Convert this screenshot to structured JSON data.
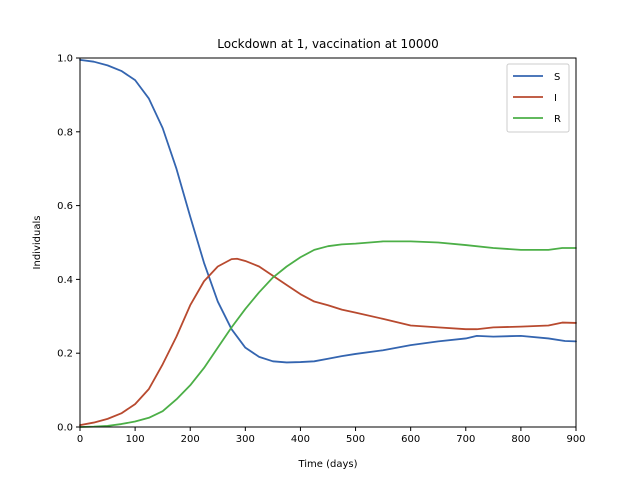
{
  "chart_data": {
    "type": "line",
    "title": "Lockdown at 1, vaccination at 10000",
    "xlabel": "Time (days)",
    "ylabel": "Individuals",
    "xlim": [
      0,
      900
    ],
    "ylim": [
      0,
      1.0
    ],
    "xticks": [
      0,
      100,
      200,
      300,
      400,
      500,
      600,
      700,
      800,
      900
    ],
    "yticks": [
      0.0,
      0.2,
      0.4,
      0.6,
      0.8,
      1.0
    ],
    "xtick_labels": [
      "0",
      "100",
      "200",
      "300",
      "400",
      "500",
      "600",
      "700",
      "800",
      "900"
    ],
    "ytick_labels": [
      "0.0",
      "0.2",
      "0.4",
      "0.6",
      "0.8",
      "1.0"
    ],
    "grid": false,
    "legend_position": "top-right",
    "series": [
      {
        "name": "S",
        "color": "#3465b0",
        "x": [
          0,
          25,
          50,
          75,
          100,
          125,
          150,
          175,
          200,
          225,
          250,
          275,
          300,
          325,
          350,
          375,
          400,
          425,
          450,
          475,
          500,
          550,
          600,
          650,
          700,
          720,
          750,
          800,
          850,
          880,
          900
        ],
        "y": [
          0.995,
          0.99,
          0.98,
          0.965,
          0.94,
          0.89,
          0.81,
          0.7,
          0.57,
          0.445,
          0.34,
          0.265,
          0.215,
          0.19,
          0.178,
          0.175,
          0.176,
          0.178,
          0.185,
          0.192,
          0.198,
          0.208,
          0.222,
          0.232,
          0.24,
          0.247,
          0.245,
          0.247,
          0.24,
          0.233,
          0.232
        ]
      },
      {
        "name": "I",
        "color": "#b84a2f",
        "x": [
          0,
          25,
          50,
          75,
          100,
          125,
          150,
          175,
          200,
          225,
          250,
          275,
          285,
          300,
          325,
          350,
          375,
          400,
          425,
          450,
          475,
          500,
          550,
          600,
          650,
          700,
          720,
          750,
          800,
          850,
          875,
          900
        ],
        "y": [
          0.005,
          0.012,
          0.022,
          0.037,
          0.062,
          0.103,
          0.17,
          0.245,
          0.33,
          0.395,
          0.435,
          0.455,
          0.456,
          0.45,
          0.435,
          0.41,
          0.385,
          0.36,
          0.34,
          0.33,
          0.318,
          0.31,
          0.293,
          0.275,
          0.27,
          0.265,
          0.265,
          0.27,
          0.272,
          0.275,
          0.283,
          0.282
        ]
      },
      {
        "name": "R",
        "color": "#4caf47",
        "x": [
          0,
          25,
          50,
          75,
          100,
          125,
          150,
          175,
          200,
          225,
          250,
          275,
          300,
          325,
          350,
          375,
          400,
          425,
          450,
          475,
          500,
          550,
          600,
          650,
          700,
          750,
          800,
          850,
          875,
          900
        ],
        "y": [
          0.0,
          0.001,
          0.003,
          0.008,
          0.015,
          0.025,
          0.043,
          0.075,
          0.113,
          0.16,
          0.215,
          0.27,
          0.32,
          0.365,
          0.405,
          0.435,
          0.46,
          0.48,
          0.49,
          0.495,
          0.497,
          0.503,
          0.503,
          0.5,
          0.493,
          0.485,
          0.48,
          0.48,
          0.485,
          0.485
        ]
      }
    ]
  }
}
